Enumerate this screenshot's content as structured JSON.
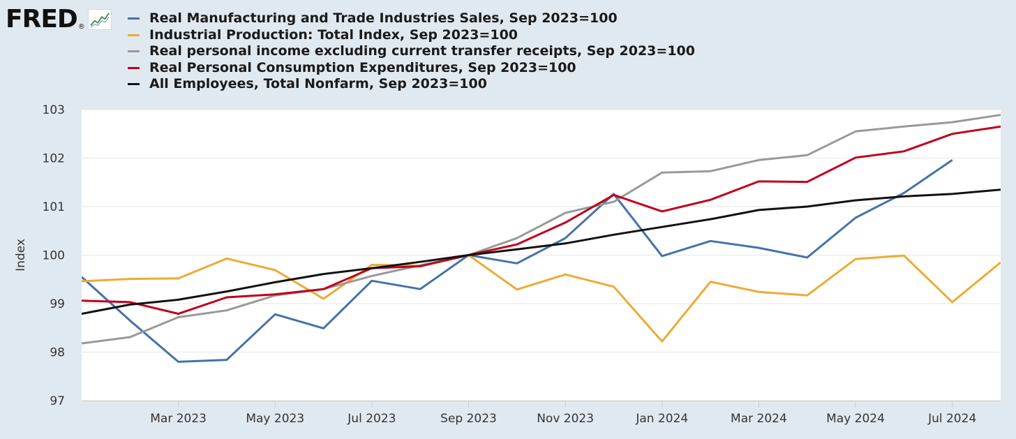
{
  "logo": {
    "text": "FRED",
    "reg": "®",
    "icon": "chart-line-icon"
  },
  "colors": {
    "background": "#e1e9f0",
    "plot_background": "#ffffff",
    "gridline": "#e6e6e6"
  },
  "chart_data": {
    "type": "line",
    "title": "",
    "xlabel": "",
    "ylabel": "Index",
    "ylim": [
      97,
      103
    ],
    "yticks": [
      97,
      98,
      99,
      100,
      101,
      102,
      103
    ],
    "x": [
      "2023-01",
      "2023-02",
      "2023-03",
      "2023-04",
      "2023-05",
      "2023-06",
      "2023-07",
      "2023-08",
      "2023-09",
      "2023-10",
      "2023-11",
      "2023-12",
      "2024-01",
      "2024-02",
      "2024-03",
      "2024-04",
      "2024-05",
      "2024-06",
      "2024-07",
      "2024-08"
    ],
    "xticks": [
      {
        "x": "2023-03",
        "label": "Mar 2023"
      },
      {
        "x": "2023-05",
        "label": "May 2023"
      },
      {
        "x": "2023-07",
        "label": "Jul 2023"
      },
      {
        "x": "2023-09",
        "label": "Sep 2023"
      },
      {
        "x": "2023-11",
        "label": "Nov 2023"
      },
      {
        "x": "2024-01",
        "label": "Jan 2024"
      },
      {
        "x": "2024-03",
        "label": "Mar 2024"
      },
      {
        "x": "2024-05",
        "label": "May 2024"
      },
      {
        "x": "2024-07",
        "label": "Jul 2024"
      }
    ],
    "grid": true,
    "legend": "top",
    "series": [
      {
        "name": "Real Manufacturing and Trade Industries Sales, Sep 2023=100",
        "color": "#4572a7",
        "values": [
          99.55,
          98.65,
          97.8,
          97.84,
          98.78,
          98.49,
          99.47,
          99.3,
          100.0,
          99.83,
          100.35,
          101.26,
          99.98,
          100.29,
          100.15,
          99.95,
          100.77,
          101.28,
          101.96,
          null
        ]
      },
      {
        "name": "Industrial Production: Total Index, Sep 2023=100",
        "color": "#eeaa33",
        "values": [
          99.46,
          99.51,
          99.52,
          99.93,
          99.69,
          99.1,
          99.8,
          99.78,
          100.0,
          99.29,
          99.6,
          99.35,
          98.22,
          99.45,
          99.24,
          99.17,
          99.92,
          99.99,
          99.03,
          99.85
        ]
      },
      {
        "name": "Real personal income excluding current transfer receipts, Sep 2023=100",
        "color": "#999999",
        "values": [
          98.18,
          98.31,
          98.72,
          98.86,
          99.17,
          99.3,
          99.57,
          99.79,
          100.0,
          100.35,
          100.87,
          101.1,
          101.7,
          101.73,
          101.96,
          102.06,
          102.55,
          102.65,
          102.74,
          102.89
        ]
      },
      {
        "name": "Real Personal Consumption Expenditures, Sep 2023=100",
        "color": "#c0001b",
        "values": [
          99.06,
          99.03,
          98.79,
          99.13,
          99.19,
          99.3,
          99.73,
          99.77,
          100.0,
          100.22,
          100.67,
          101.24,
          100.9,
          101.14,
          101.52,
          101.51,
          102.01,
          102.14,
          102.5,
          102.65
        ]
      },
      {
        "name": "All Employees, Total Nonfarm, Sep 2023=100",
        "color": "#111111",
        "values": [
          98.79,
          98.98,
          99.08,
          99.25,
          99.44,
          99.61,
          99.73,
          99.86,
          100.0,
          100.12,
          100.24,
          100.42,
          100.58,
          100.74,
          100.93,
          101.0,
          101.13,
          101.21,
          101.26,
          101.35
        ]
      }
    ]
  }
}
